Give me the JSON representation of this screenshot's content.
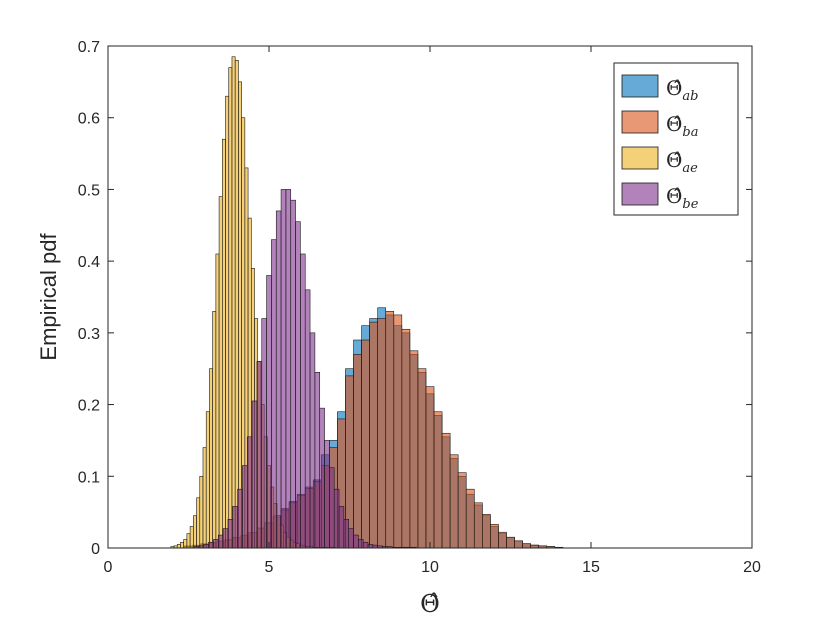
{
  "chart_data": {
    "type": "bar",
    "subtype": "overlapping-histograms",
    "xlabel": "Θ̂",
    "ylabel": "Empirical pdf",
    "xlim": [
      0,
      20
    ],
    "ylim": [
      0,
      0.7
    ],
    "xticks": [
      0,
      5,
      10,
      15,
      20
    ],
    "yticks": [
      0,
      0.1,
      0.2,
      0.3,
      0.4,
      0.5,
      0.6,
      0.7
    ],
    "xtick_labels": [
      "0",
      "5",
      "10",
      "15",
      "20"
    ],
    "ytick_labels": [
      "0",
      "0.1",
      "0.2",
      "0.3",
      "0.4",
      "0.5",
      "0.6",
      "0.7"
    ],
    "grid": false,
    "legend_position": "top-right",
    "bar_opacity": 0.6,
    "series": [
      {
        "name": "Θ̂ab",
        "legend_base": "Θ̂",
        "legend_sub": "ab",
        "color": "#0072BD",
        "bin_width": 0.25,
        "x": [
          2.5,
          2.75,
          3.0,
          3.25,
          3.5,
          3.75,
          4.0,
          4.25,
          4.5,
          4.75,
          5.0,
          5.25,
          5.5,
          5.75,
          6.0,
          6.25,
          6.5,
          6.75,
          7.0,
          7.25,
          7.5,
          7.75,
          8.0,
          8.25,
          8.5,
          8.75,
          9.0,
          9.25,
          9.5,
          9.75,
          10.0,
          10.25,
          10.5,
          10.75,
          11.0,
          11.25,
          11.5,
          11.75,
          12.0,
          12.25,
          12.5,
          12.75,
          13.0,
          13.25,
          13.5,
          13.75,
          14.0
        ],
        "values": [
          0.003,
          0.004,
          0.006,
          0.008,
          0.01,
          0.012,
          0.015,
          0.018,
          0.022,
          0.028,
          0.036,
          0.045,
          0.055,
          0.065,
          0.075,
          0.085,
          0.095,
          0.13,
          0.15,
          0.19,
          0.25,
          0.29,
          0.31,
          0.32,
          0.335,
          0.325,
          0.31,
          0.3,
          0.27,
          0.245,
          0.215,
          0.185,
          0.155,
          0.125,
          0.1,
          0.075,
          0.06,
          0.045,
          0.03,
          0.02,
          0.015,
          0.01,
          0.006,
          0.004,
          0.003,
          0.002,
          0.001
        ]
      },
      {
        "name": "Θ̂ba",
        "legend_base": "Θ̂",
        "legend_sub": "ba",
        "color": "#D95319",
        "bin_width": 0.25,
        "x": [
          2.5,
          2.75,
          3.0,
          3.25,
          3.5,
          3.75,
          4.0,
          4.25,
          4.5,
          4.75,
          5.0,
          5.25,
          5.5,
          5.75,
          6.0,
          6.25,
          6.5,
          6.75,
          7.0,
          7.25,
          7.5,
          7.75,
          8.0,
          8.25,
          8.5,
          8.75,
          9.0,
          9.25,
          9.5,
          9.75,
          10.0,
          10.25,
          10.5,
          10.75,
          11.0,
          11.25,
          11.5,
          11.75,
          12.0,
          12.25,
          12.5,
          12.75,
          13.0,
          13.25,
          13.5,
          13.75,
          14.0
        ],
        "values": [
          0.002,
          0.003,
          0.005,
          0.007,
          0.009,
          0.011,
          0.014,
          0.017,
          0.021,
          0.027,
          0.034,
          0.043,
          0.053,
          0.063,
          0.073,
          0.083,
          0.093,
          0.115,
          0.14,
          0.18,
          0.24,
          0.27,
          0.29,
          0.315,
          0.32,
          0.33,
          0.325,
          0.305,
          0.275,
          0.25,
          0.225,
          0.19,
          0.16,
          0.13,
          0.105,
          0.082,
          0.063,
          0.047,
          0.033,
          0.022,
          0.015,
          0.01,
          0.006,
          0.004,
          0.003,
          0.002,
          0.001
        ]
      },
      {
        "name": "Θ̂ae",
        "legend_base": "Θ̂",
        "legend_sub": "ae",
        "color": "#EDB120",
        "bin_width": 0.1,
        "x": [
          2.0,
          2.1,
          2.2,
          2.3,
          2.4,
          2.5,
          2.6,
          2.7,
          2.8,
          2.9,
          3.0,
          3.1,
          3.2,
          3.3,
          3.4,
          3.5,
          3.6,
          3.7,
          3.8,
          3.9,
          4.0,
          4.1,
          4.2,
          4.3,
          4.4,
          4.5,
          4.6,
          4.7,
          4.8,
          4.9,
          5.0,
          5.1,
          5.2,
          5.3,
          5.4,
          5.5,
          5.6,
          5.7,
          5.8,
          5.9,
          6.0,
          6.1,
          6.2,
          6.3,
          6.4,
          6.5,
          6.6,
          6.7,
          6.8,
          6.9,
          7.0
        ],
        "values": [
          0.002,
          0.003,
          0.005,
          0.008,
          0.012,
          0.02,
          0.03,
          0.045,
          0.07,
          0.1,
          0.14,
          0.19,
          0.25,
          0.33,
          0.41,
          0.49,
          0.57,
          0.63,
          0.67,
          0.685,
          0.68,
          0.65,
          0.6,
          0.53,
          0.46,
          0.39,
          0.32,
          0.26,
          0.2,
          0.155,
          0.115,
          0.085,
          0.062,
          0.045,
          0.032,
          0.022,
          0.015,
          0.011,
          0.008,
          0.006,
          0.004,
          0.003,
          0.002,
          0.002,
          0.001,
          0.001,
          0.001,
          0.001,
          0.001,
          0.001,
          0.001
        ]
      },
      {
        "name": "Θ̂be",
        "legend_base": "Θ̂",
        "legend_sub": "be",
        "color": "#7E2F8E",
        "bin_width": 0.15,
        "x": [
          2.75,
          2.9,
          3.05,
          3.2,
          3.35,
          3.5,
          3.65,
          3.8,
          3.95,
          4.1,
          4.25,
          4.4,
          4.55,
          4.7,
          4.85,
          5.0,
          5.15,
          5.3,
          5.45,
          5.6,
          5.75,
          5.9,
          6.05,
          6.2,
          6.35,
          6.5,
          6.65,
          6.8,
          6.95,
          7.1,
          7.25,
          7.4,
          7.55,
          7.7,
          7.85,
          8.0,
          8.15,
          8.3,
          8.45,
          8.6,
          8.75,
          8.9,
          9.05,
          9.2,
          9.35,
          9.5
        ],
        "values": [
          0.002,
          0.003,
          0.005,
          0.008,
          0.012,
          0.018,
          0.027,
          0.04,
          0.058,
          0.082,
          0.115,
          0.155,
          0.205,
          0.26,
          0.32,
          0.38,
          0.43,
          0.47,
          0.5,
          0.5,
          0.485,
          0.455,
          0.41,
          0.36,
          0.3,
          0.245,
          0.195,
          0.15,
          0.112,
          0.082,
          0.058,
          0.04,
          0.027,
          0.018,
          0.012,
          0.008,
          0.005,
          0.004,
          0.003,
          0.002,
          0.002,
          0.001,
          0.001,
          0.001,
          0.001,
          0.001
        ]
      }
    ]
  }
}
